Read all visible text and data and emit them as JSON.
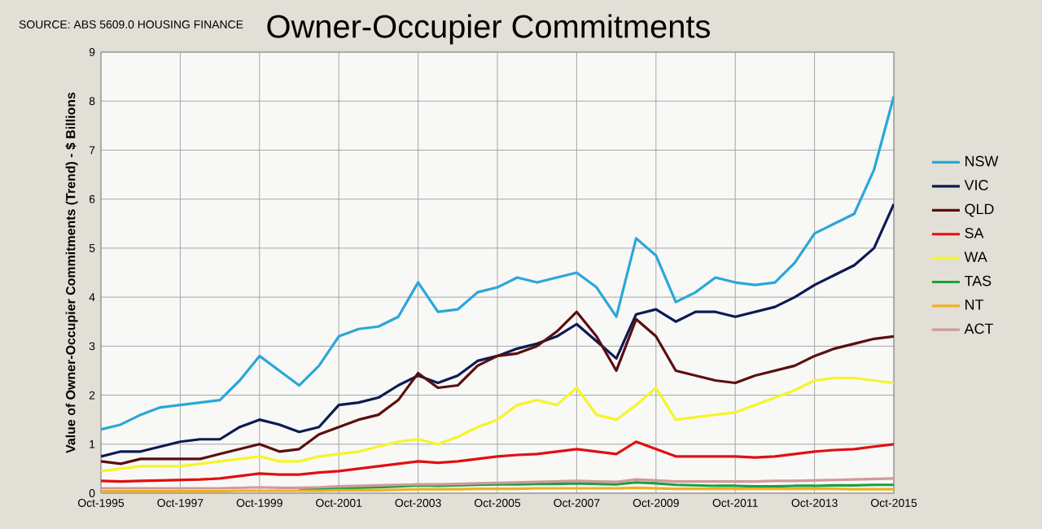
{
  "chart_data": {
    "type": "line",
    "title": "Owner-Occupier Commitments",
    "ylabel": "Value of Owner-Occupier Commitments (Trend) - $ Billions",
    "annotations": [
      "SOURCE: ABS 5609.0 HOUSING FINANCE"
    ],
    "x": [
      "1995-10",
      "1996-04",
      "1996-10",
      "1997-04",
      "1997-10",
      "1998-04",
      "1998-10",
      "1999-04",
      "1999-10",
      "2000-04",
      "2000-10",
      "2001-04",
      "2001-10",
      "2002-04",
      "2002-10",
      "2003-04",
      "2003-10",
      "2004-04",
      "2004-10",
      "2005-04",
      "2005-10",
      "2006-04",
      "2006-10",
      "2007-04",
      "2007-10",
      "2008-04",
      "2008-10",
      "2009-04",
      "2009-10",
      "2010-04",
      "2010-10",
      "2011-04",
      "2011-10",
      "2012-04",
      "2012-10",
      "2013-04",
      "2013-10",
      "2014-04",
      "2014-10",
      "2015-04",
      "2015-10"
    ],
    "series": [
      {
        "name": "NSW",
        "color": "#2aa7d8",
        "values": [
          1.3,
          1.4,
          1.6,
          1.75,
          1.8,
          1.85,
          1.9,
          2.3,
          2.8,
          2.5,
          2.2,
          2.6,
          3.2,
          3.35,
          3.4,
          3.6,
          4.3,
          3.7,
          3.75,
          4.1,
          4.2,
          4.4,
          4.3,
          4.4,
          4.5,
          4.2,
          3.6,
          5.2,
          4.85,
          3.9,
          4.1,
          4.4,
          4.3,
          4.25,
          4.3,
          4.7,
          5.3,
          5.5,
          5.7,
          6.6,
          8.1
        ]
      },
      {
        "name": "VIC",
        "color": "#0d1a52",
        "values": [
          0.75,
          0.85,
          0.85,
          0.95,
          1.05,
          1.1,
          1.1,
          1.35,
          1.5,
          1.4,
          1.25,
          1.35,
          1.8,
          1.85,
          1.95,
          2.2,
          2.4,
          2.25,
          2.4,
          2.7,
          2.8,
          2.95,
          3.05,
          3.2,
          3.45,
          3.1,
          2.75,
          3.65,
          3.75,
          3.5,
          3.7,
          3.7,
          3.6,
          3.7,
          3.8,
          4.0,
          4.25,
          4.45,
          4.65,
          5.0,
          5.9
        ]
      },
      {
        "name": "QLD",
        "color": "#5a0f0f",
        "values": [
          0.65,
          0.6,
          0.7,
          0.7,
          0.7,
          0.7,
          0.8,
          0.9,
          1.0,
          0.85,
          0.9,
          1.2,
          1.35,
          1.5,
          1.6,
          1.9,
          2.45,
          2.15,
          2.2,
          2.6,
          2.8,
          2.85,
          3.0,
          3.3,
          3.7,
          3.2,
          2.5,
          3.55,
          3.2,
          2.5,
          2.4,
          2.3,
          2.25,
          2.4,
          2.5,
          2.6,
          2.8,
          2.95,
          3.05,
          3.15,
          3.2
        ]
      },
      {
        "name": "SA",
        "color": "#e01010",
        "values": [
          0.25,
          0.24,
          0.25,
          0.26,
          0.27,
          0.28,
          0.3,
          0.35,
          0.4,
          0.38,
          0.38,
          0.42,
          0.45,
          0.5,
          0.55,
          0.6,
          0.65,
          0.62,
          0.65,
          0.7,
          0.75,
          0.78,
          0.8,
          0.85,
          0.9,
          0.85,
          0.8,
          1.05,
          0.9,
          0.75,
          0.75,
          0.75,
          0.75,
          0.73,
          0.75,
          0.8,
          0.85,
          0.88,
          0.9,
          0.95,
          1.0
        ]
      },
      {
        "name": "WA",
        "color": "#f5f52a",
        "values": [
          0.45,
          0.5,
          0.55,
          0.55,
          0.55,
          0.6,
          0.65,
          0.7,
          0.75,
          0.65,
          0.65,
          0.75,
          0.8,
          0.85,
          0.95,
          1.05,
          1.1,
          1.0,
          1.15,
          1.35,
          1.5,
          1.8,
          1.9,
          1.8,
          2.15,
          1.6,
          1.5,
          1.8,
          2.15,
          1.5,
          1.55,
          1.6,
          1.65,
          1.8,
          1.95,
          2.1,
          2.3,
          2.35,
          2.35,
          2.3,
          2.25
        ]
      },
      {
        "name": "TAS",
        "color": "#1aa040",
        "values": [
          null,
          null,
          null,
          null,
          null,
          null,
          null,
          null,
          null,
          null,
          0.08,
          0.09,
          0.1,
          0.11,
          0.12,
          0.14,
          0.16,
          0.15,
          0.16,
          0.17,
          0.18,
          0.18,
          0.19,
          0.19,
          0.2,
          0.19,
          0.18,
          0.22,
          0.2,
          0.17,
          0.16,
          0.15,
          0.15,
          0.14,
          0.14,
          0.15,
          0.15,
          0.16,
          0.16,
          0.17,
          0.17
        ]
      },
      {
        "name": "NT",
        "color": "#f0b020",
        "values": [
          0.04,
          0.04,
          0.04,
          0.04,
          0.04,
          0.04,
          0.04,
          0.05,
          0.05,
          0.05,
          0.05,
          0.05,
          0.06,
          0.06,
          0.06,
          0.07,
          0.08,
          0.08,
          0.08,
          0.09,
          0.09,
          0.09,
          0.1,
          0.1,
          0.1,
          0.1,
          0.1,
          0.11,
          0.1,
          0.09,
          0.09,
          0.09,
          0.09,
          0.09,
          0.09,
          0.09,
          0.09,
          0.09,
          0.08,
          0.08,
          0.08
        ]
      },
      {
        "name": "ACT",
        "color": "#d09a9a",
        "values": [
          0.1,
          0.1,
          0.1,
          0.1,
          0.1,
          0.1,
          0.1,
          0.11,
          0.12,
          0.11,
          0.11,
          0.12,
          0.14,
          0.15,
          0.16,
          0.17,
          0.18,
          0.18,
          0.19,
          0.2,
          0.21,
          0.22,
          0.23,
          0.24,
          0.25,
          0.24,
          0.23,
          0.28,
          0.26,
          0.24,
          0.24,
          0.24,
          0.24,
          0.24,
          0.25,
          0.25,
          0.26,
          0.27,
          0.28,
          0.29,
          0.3
        ]
      }
    ],
    "xlim": [
      "1995-10",
      "2015-10"
    ],
    "xticks": [
      {
        "value": "1995-10",
        "label": "Oct-1995"
      },
      {
        "value": "1997-10",
        "label": "Oct-1997"
      },
      {
        "value": "1999-10",
        "label": "Oct-1999"
      },
      {
        "value": "2001-10",
        "label": "Oct-2001"
      },
      {
        "value": "2003-10",
        "label": "Oct-2003"
      },
      {
        "value": "2005-10",
        "label": "Oct-2005"
      },
      {
        "value": "2007-10",
        "label": "Oct-2007"
      },
      {
        "value": "2009-10",
        "label": "Oct-2009"
      },
      {
        "value": "2011-10",
        "label": "Oct-2011"
      },
      {
        "value": "2013-10",
        "label": "Oct-2013"
      },
      {
        "value": "2015-10",
        "label": "Oct-2015"
      }
    ],
    "ylim": [
      0,
      9
    ],
    "yticks": [
      0,
      1,
      2,
      3,
      4,
      5,
      6,
      7,
      8,
      9
    ],
    "grid": true,
    "legend": "right",
    "marker": "none",
    "line_style": "solid"
  }
}
